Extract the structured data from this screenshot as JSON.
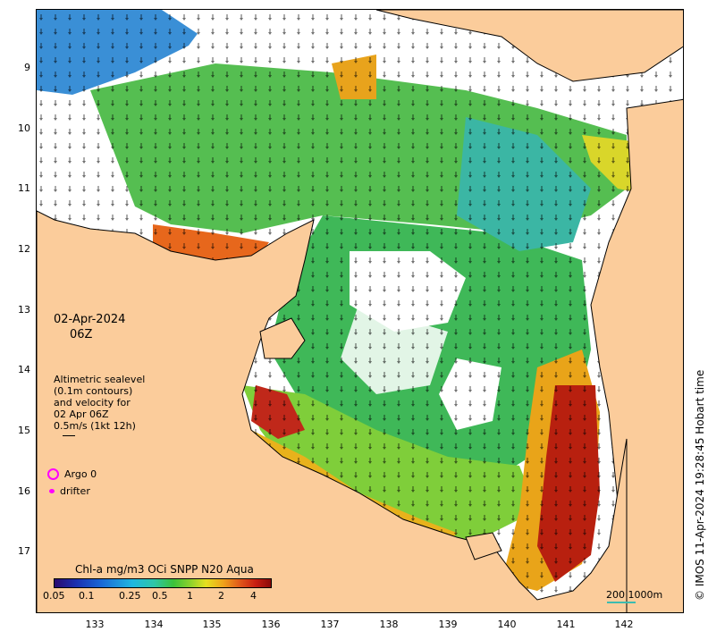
{
  "map": {
    "date": "02-Apr-2024",
    "time": "06Z",
    "lat_ticks": [
      "9",
      "10",
      "11",
      "12",
      "13",
      "14",
      "15",
      "16",
      "17"
    ],
    "lon_ticks": [
      "133",
      "134",
      "135",
      "136",
      "137",
      "138",
      "139",
      "140",
      "141",
      "142"
    ],
    "altimetry_legend": [
      "Altimetric sealevel",
      "(0.1m contours)",
      "and velocity for",
      "02 Apr 06Z",
      "0.5m/s (1kt 12h)"
    ],
    "argo_label": "Argo 0",
    "drifter_label": "drifter",
    "colorbar_title": "Chl-a mg/m3 OCi SNPP N20 Aqua",
    "colorbar_ticks": [
      "0.05",
      "0.1",
      "0.25",
      "0.5",
      "1",
      "2",
      "4"
    ],
    "scale_label": "200  1000m",
    "credit": "© IMOS 11-Apr-2024 19:28:45 Hobart time",
    "colors": {
      "land": "#fbcc9b",
      "argo": "#ff00ff",
      "scale": "#3cbcb0"
    }
  }
}
